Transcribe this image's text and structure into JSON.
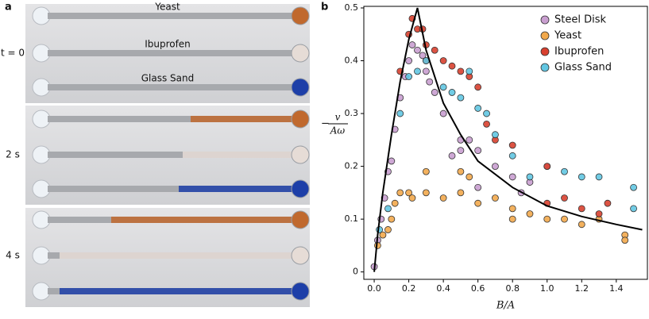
{
  "panel_a": {
    "label": "a",
    "row_labels": [
      "t = 0",
      "2 s",
      "4 s"
    ],
    "channel_labels": [
      "Yeast",
      "Ibuprofen",
      "Glass Sand"
    ]
  },
  "chart_data": {
    "type": "scatter",
    "panel_label": "b",
    "xlabel": "B/A",
    "ylabel": {
      "sign": "−",
      "numerator": "v",
      "denominator": "Aω"
    },
    "xlim": [
      -0.06,
      1.58
    ],
    "ylim": [
      -0.014,
      0.503
    ],
    "xticks": [
      {
        "value": 0,
        "label": "0.0"
      },
      {
        "value": 0.2,
        "label": "0.2"
      },
      {
        "value": 0.4,
        "label": "0.4"
      },
      {
        "value": 0.6,
        "label": "0.6"
      },
      {
        "value": 0.8,
        "label": "0.8"
      },
      {
        "value": 1,
        "label": "1.0"
      },
      {
        "value": 1.2,
        "label": "1.2"
      },
      {
        "value": 1.4,
        "label": "1.4"
      }
    ],
    "yticks": [
      0,
      0.1,
      0.2,
      0.3,
      0.4,
      0.5
    ],
    "legend": "upper right",
    "series": [
      {
        "name": "Steel Disk",
        "color": "#c99fd0",
        "x": [
          0,
          0.02,
          0.04,
          0.06,
          0.08,
          0.1,
          0.12,
          0.15,
          0.18,
          0.2,
          0.22,
          0.25,
          0.28,
          0.3,
          0.32,
          0.35,
          0.4,
          0.45,
          0.5,
          0.55,
          0.6,
          0.7,
          0.8,
          0.85,
          0.9,
          1.0,
          0.6,
          0.5
        ],
        "values": [
          0.01,
          0.06,
          0.1,
          0.14,
          0.19,
          0.21,
          0.27,
          0.33,
          0.37,
          0.4,
          0.43,
          0.42,
          0.41,
          0.38,
          0.36,
          0.34,
          0.3,
          0.22,
          0.23,
          0.25,
          0.23,
          0.2,
          0.18,
          0.15,
          0.17,
          0.2,
          0.16,
          0.25
        ]
      },
      {
        "name": "Yeast",
        "color": "#f2a94c",
        "x": [
          0.02,
          0.05,
          0.08,
          0.1,
          0.12,
          0.15,
          0.2,
          0.22,
          0.3,
          0.3,
          0.4,
          0.5,
          0.55,
          0.6,
          0.7,
          0.8,
          0.9,
          1.0,
          1.1,
          1.2,
          1.3,
          1.45,
          1.45,
          0.5,
          0.8
        ],
        "values": [
          0.05,
          0.07,
          0.08,
          0.1,
          0.13,
          0.15,
          0.15,
          0.14,
          0.19,
          0.15,
          0.14,
          0.15,
          0.18,
          0.13,
          0.14,
          0.12,
          0.11,
          0.1,
          0.1,
          0.09,
          0.1,
          0.07,
          0.06,
          0.19,
          0.1
        ]
      },
      {
        "name": "Ibuprofen",
        "color": "#d8402f",
        "x": [
          0.15,
          0.2,
          0.22,
          0.25,
          0.3,
          0.35,
          0.4,
          0.45,
          0.5,
          0.55,
          0.6,
          0.65,
          0.7,
          0.8,
          1.0,
          1.0,
          1.1,
          1.2,
          1.3,
          1.35,
          0.3,
          0.28
        ],
        "values": [
          0.38,
          0.45,
          0.48,
          0.46,
          0.43,
          0.42,
          0.4,
          0.39,
          0.38,
          0.37,
          0.35,
          0.28,
          0.25,
          0.24,
          0.2,
          0.13,
          0.14,
          0.12,
          0.11,
          0.13,
          0.4,
          0.46
        ]
      },
      {
        "name": "Glass Sand",
        "color": "#62c6e2",
        "x": [
          0.03,
          0.08,
          0.15,
          0.2,
          0.25,
          0.3,
          0.4,
          0.45,
          0.5,
          0.6,
          0.7,
          0.8,
          0.9,
          1.1,
          1.2,
          1.3,
          1.5,
          1.5,
          0.55,
          0.65
        ],
        "values": [
          0.08,
          0.12,
          0.3,
          0.37,
          0.38,
          0.4,
          0.35,
          0.34,
          0.33,
          0.31,
          0.26,
          0.22,
          0.18,
          0.19,
          0.18,
          0.18,
          0.16,
          0.12,
          0.38,
          0.3
        ]
      }
    ],
    "fit_line": {
      "color": "#000000",
      "x": [
        0,
        0.02,
        0.05,
        0.1,
        0.15,
        0.2,
        0.25,
        0.3,
        0.4,
        0.5,
        0.6,
        0.8,
        1.0,
        1.2,
        1.4,
        1.55
      ],
      "values": [
        0,
        0.07,
        0.15,
        0.26,
        0.36,
        0.44,
        0.5,
        0.42,
        0.32,
        0.26,
        0.21,
        0.16,
        0.125,
        0.105,
        0.09,
        0.08
      ]
    }
  }
}
